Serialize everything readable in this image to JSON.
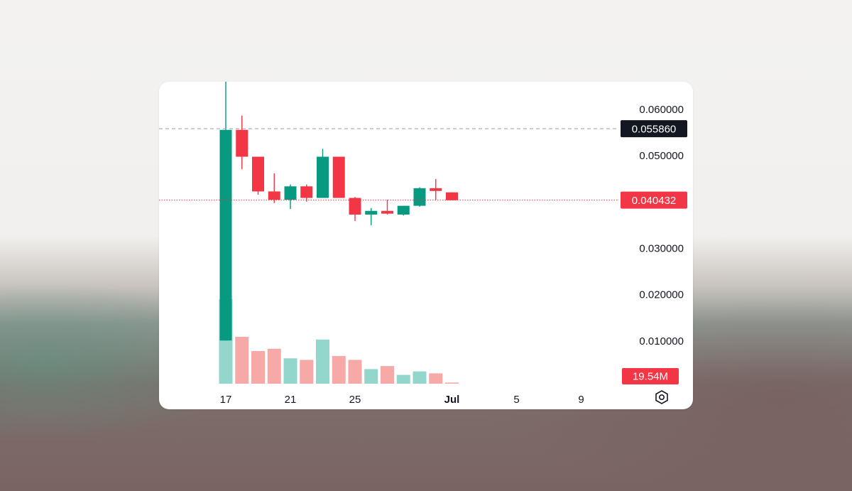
{
  "chart_data": {
    "type": "candlestick",
    "colors": {
      "up": "#089981",
      "down": "#f23645",
      "up_volume": "#92d6cc",
      "down_volume": "#f7a9a8",
      "last_line": "#f23645",
      "ref_line": "#9e9e9e"
    },
    "ylim": [
      0.0,
      0.066
    ],
    "y_ticks": [
      "0.060000",
      "0.050000",
      "0.030000",
      "0.020000",
      "0.010000"
    ],
    "y_tick_values": [
      0.06,
      0.05,
      0.03,
      0.02,
      0.01
    ],
    "x_ticks": [
      {
        "day": 17,
        "label": "17"
      },
      {
        "day": 21,
        "label": "21"
      },
      {
        "day": 25,
        "label": "25"
      },
      {
        "day": 31,
        "label": "Jul"
      },
      {
        "day": 35,
        "label": "5"
      },
      {
        "day": 39,
        "label": "9"
      }
    ],
    "x_range_days": [
      16,
      42
    ],
    "reference_price": {
      "value": 0.05586,
      "label": "0.055860",
      "style": "dashed"
    },
    "last_price": {
      "value": 0.040432,
      "label": "0.040432",
      "style": "dotted"
    },
    "volume_label": "19.54M",
    "volume_max": 22,
    "candles": [
      {
        "day": 17,
        "open": 0.0101,
        "high": 0.0661,
        "low": 0.0101,
        "close": 0.0556,
        "volume": 22.0
      },
      {
        "day": 18,
        "open": 0.0556,
        "high": 0.0587,
        "low": 0.0471,
        "close": 0.0498,
        "volume": 12.2
      },
      {
        "day": 19,
        "open": 0.0498,
        "high": 0.0498,
        "low": 0.0416,
        "close": 0.0423,
        "volume": 8.5
      },
      {
        "day": 20,
        "open": 0.0423,
        "high": 0.0462,
        "low": 0.0398,
        "close": 0.0405,
        "volume": 9.1
      },
      {
        "day": 21,
        "open": 0.0405,
        "high": 0.0438,
        "low": 0.0385,
        "close": 0.0434,
        "volume": 6.6
      },
      {
        "day": 22,
        "open": 0.0434,
        "high": 0.0438,
        "low": 0.0401,
        "close": 0.0409,
        "volume": 6.2
      },
      {
        "day": 23,
        "open": 0.0409,
        "high": 0.0515,
        "low": 0.0409,
        "close": 0.0498,
        "volume": 11.5
      },
      {
        "day": 24,
        "open": 0.0498,
        "high": 0.0498,
        "low": 0.0409,
        "close": 0.0409,
        "volume": 7.2
      },
      {
        "day": 25,
        "open": 0.0409,
        "high": 0.0411,
        "low": 0.0359,
        "close": 0.0373,
        "volume": 6.2
      },
      {
        "day": 26,
        "open": 0.0373,
        "high": 0.0387,
        "low": 0.035,
        "close": 0.0381,
        "volume": 3.8
      },
      {
        "day": 27,
        "open": 0.0381,
        "high": 0.0405,
        "low": 0.0373,
        "close": 0.0375,
        "volume": 4.6
      },
      {
        "day": 28,
        "open": 0.0373,
        "high": 0.0392,
        "low": 0.0371,
        "close": 0.0392,
        "volume": 2.3
      },
      {
        "day": 29,
        "open": 0.0392,
        "high": 0.0432,
        "low": 0.039,
        "close": 0.043,
        "volume": 3.2
      },
      {
        "day": 30,
        "open": 0.043,
        "high": 0.045,
        "low": 0.0405,
        "close": 0.0424,
        "volume": 2.7
      },
      {
        "day": 31,
        "open": 0.0421,
        "high": 0.0421,
        "low": 0.0404,
        "close": 0.0404,
        "volume": 0.3
      }
    ]
  },
  "icons": {
    "settings": "settings-hexagon-icon"
  }
}
